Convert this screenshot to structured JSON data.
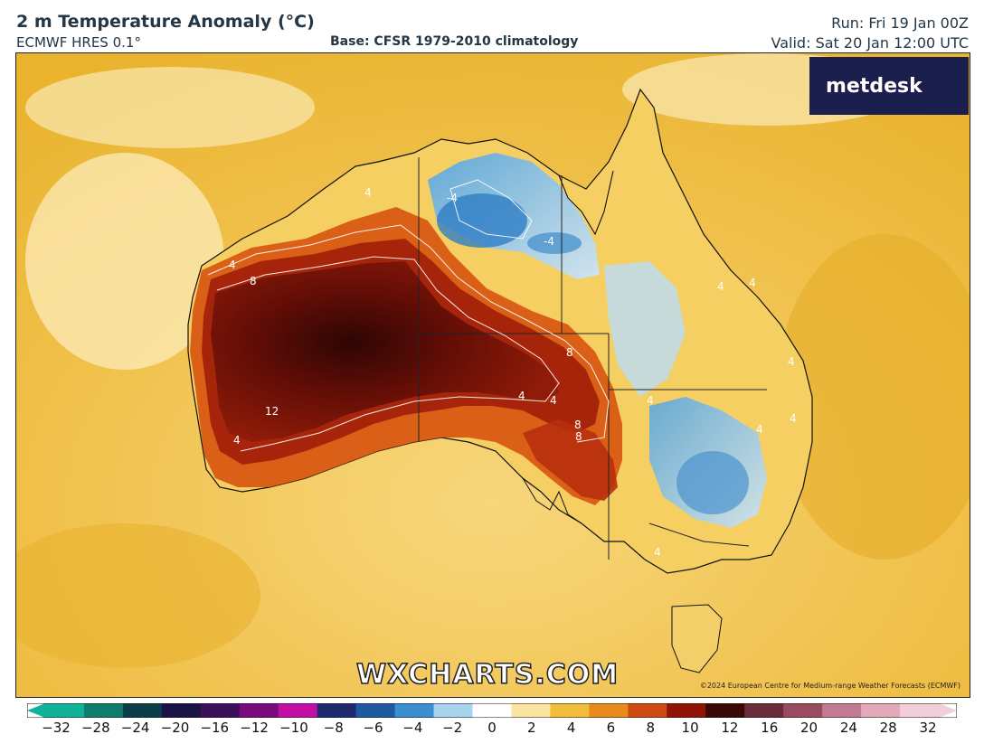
{
  "header": {
    "title": "2 m Temperature Anomaly (°C)",
    "model": "ECMWF HRES 0.1°",
    "base": "Base: CFSR 1979-2010 climatology",
    "run": "Run: Fri 19 Jan 00Z",
    "valid": "Valid: Sat 20 Jan 12:00 UTC"
  },
  "map": {
    "region": "Australia",
    "contour_labels": [
      "4",
      "8",
      "12",
      "-4",
      "-4",
      "4",
      "4",
      "8",
      "8",
      "4",
      "4",
      "4",
      "4",
      "4",
      "4",
      "4",
      "4",
      "4",
      "8"
    ]
  },
  "logo": {
    "text": "metdesk"
  },
  "watermark": "WXCHARTS.COM",
  "copyright": "©2024 European Centre for Medium-range Weather Forecasts (ECMWF)",
  "colorbar": {
    "ticks": [
      "−32",
      "−28",
      "−24",
      "−20",
      "−16",
      "−12",
      "−10",
      "−8",
      "−6",
      "−4",
      "−2",
      "0",
      "2",
      "4",
      "6",
      "8",
      "10",
      "12",
      "16",
      "20",
      "24",
      "28",
      "32"
    ],
    "colors": [
      "#10b39a",
      "#0e7e6b",
      "#0a3e4a",
      "#1b1345",
      "#3c0e5c",
      "#7b0a7c",
      "#c30ea6",
      "#1e2a6e",
      "#1e5aa0",
      "#3b8fd0",
      "#a9d4ee",
      "#ffffff",
      "#fbe5a0",
      "#f1bd3a",
      "#e88a1c",
      "#cf4a10",
      "#8f1405",
      "#3a0805",
      "#6b2b3b",
      "#9a4b62",
      "#c27a90",
      "#e3a9b9",
      "#f2cfd8"
    ]
  }
}
